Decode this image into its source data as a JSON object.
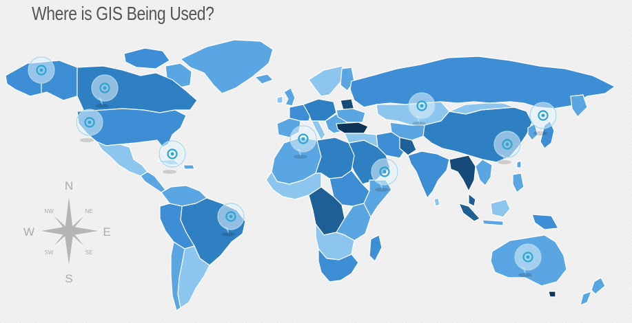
{
  "page": {
    "title": "Where is GIS Being Used?"
  },
  "compass": {
    "north": "N",
    "south": "S",
    "east": "E",
    "west": "W",
    "northwest": "NW",
    "northeast": "NE",
    "southwest": "SW",
    "southeast": "SE"
  },
  "map": {
    "palette": [
      "#2f7fc3",
      "#3d8ed4",
      "#5aa6e2",
      "#8cc6ef",
      "#1e5f96",
      "#164a78",
      "#0e3558"
    ],
    "pin_color": "#2aa5cf",
    "pin_icon": "map-marker-icon",
    "pins": [
      "alaska",
      "canada",
      "western-united-states",
      "gulf-of-mexico",
      "brazil",
      "north-africa",
      "horn-of-africa",
      "central-asia",
      "japan",
      "china",
      "australia"
    ]
  }
}
